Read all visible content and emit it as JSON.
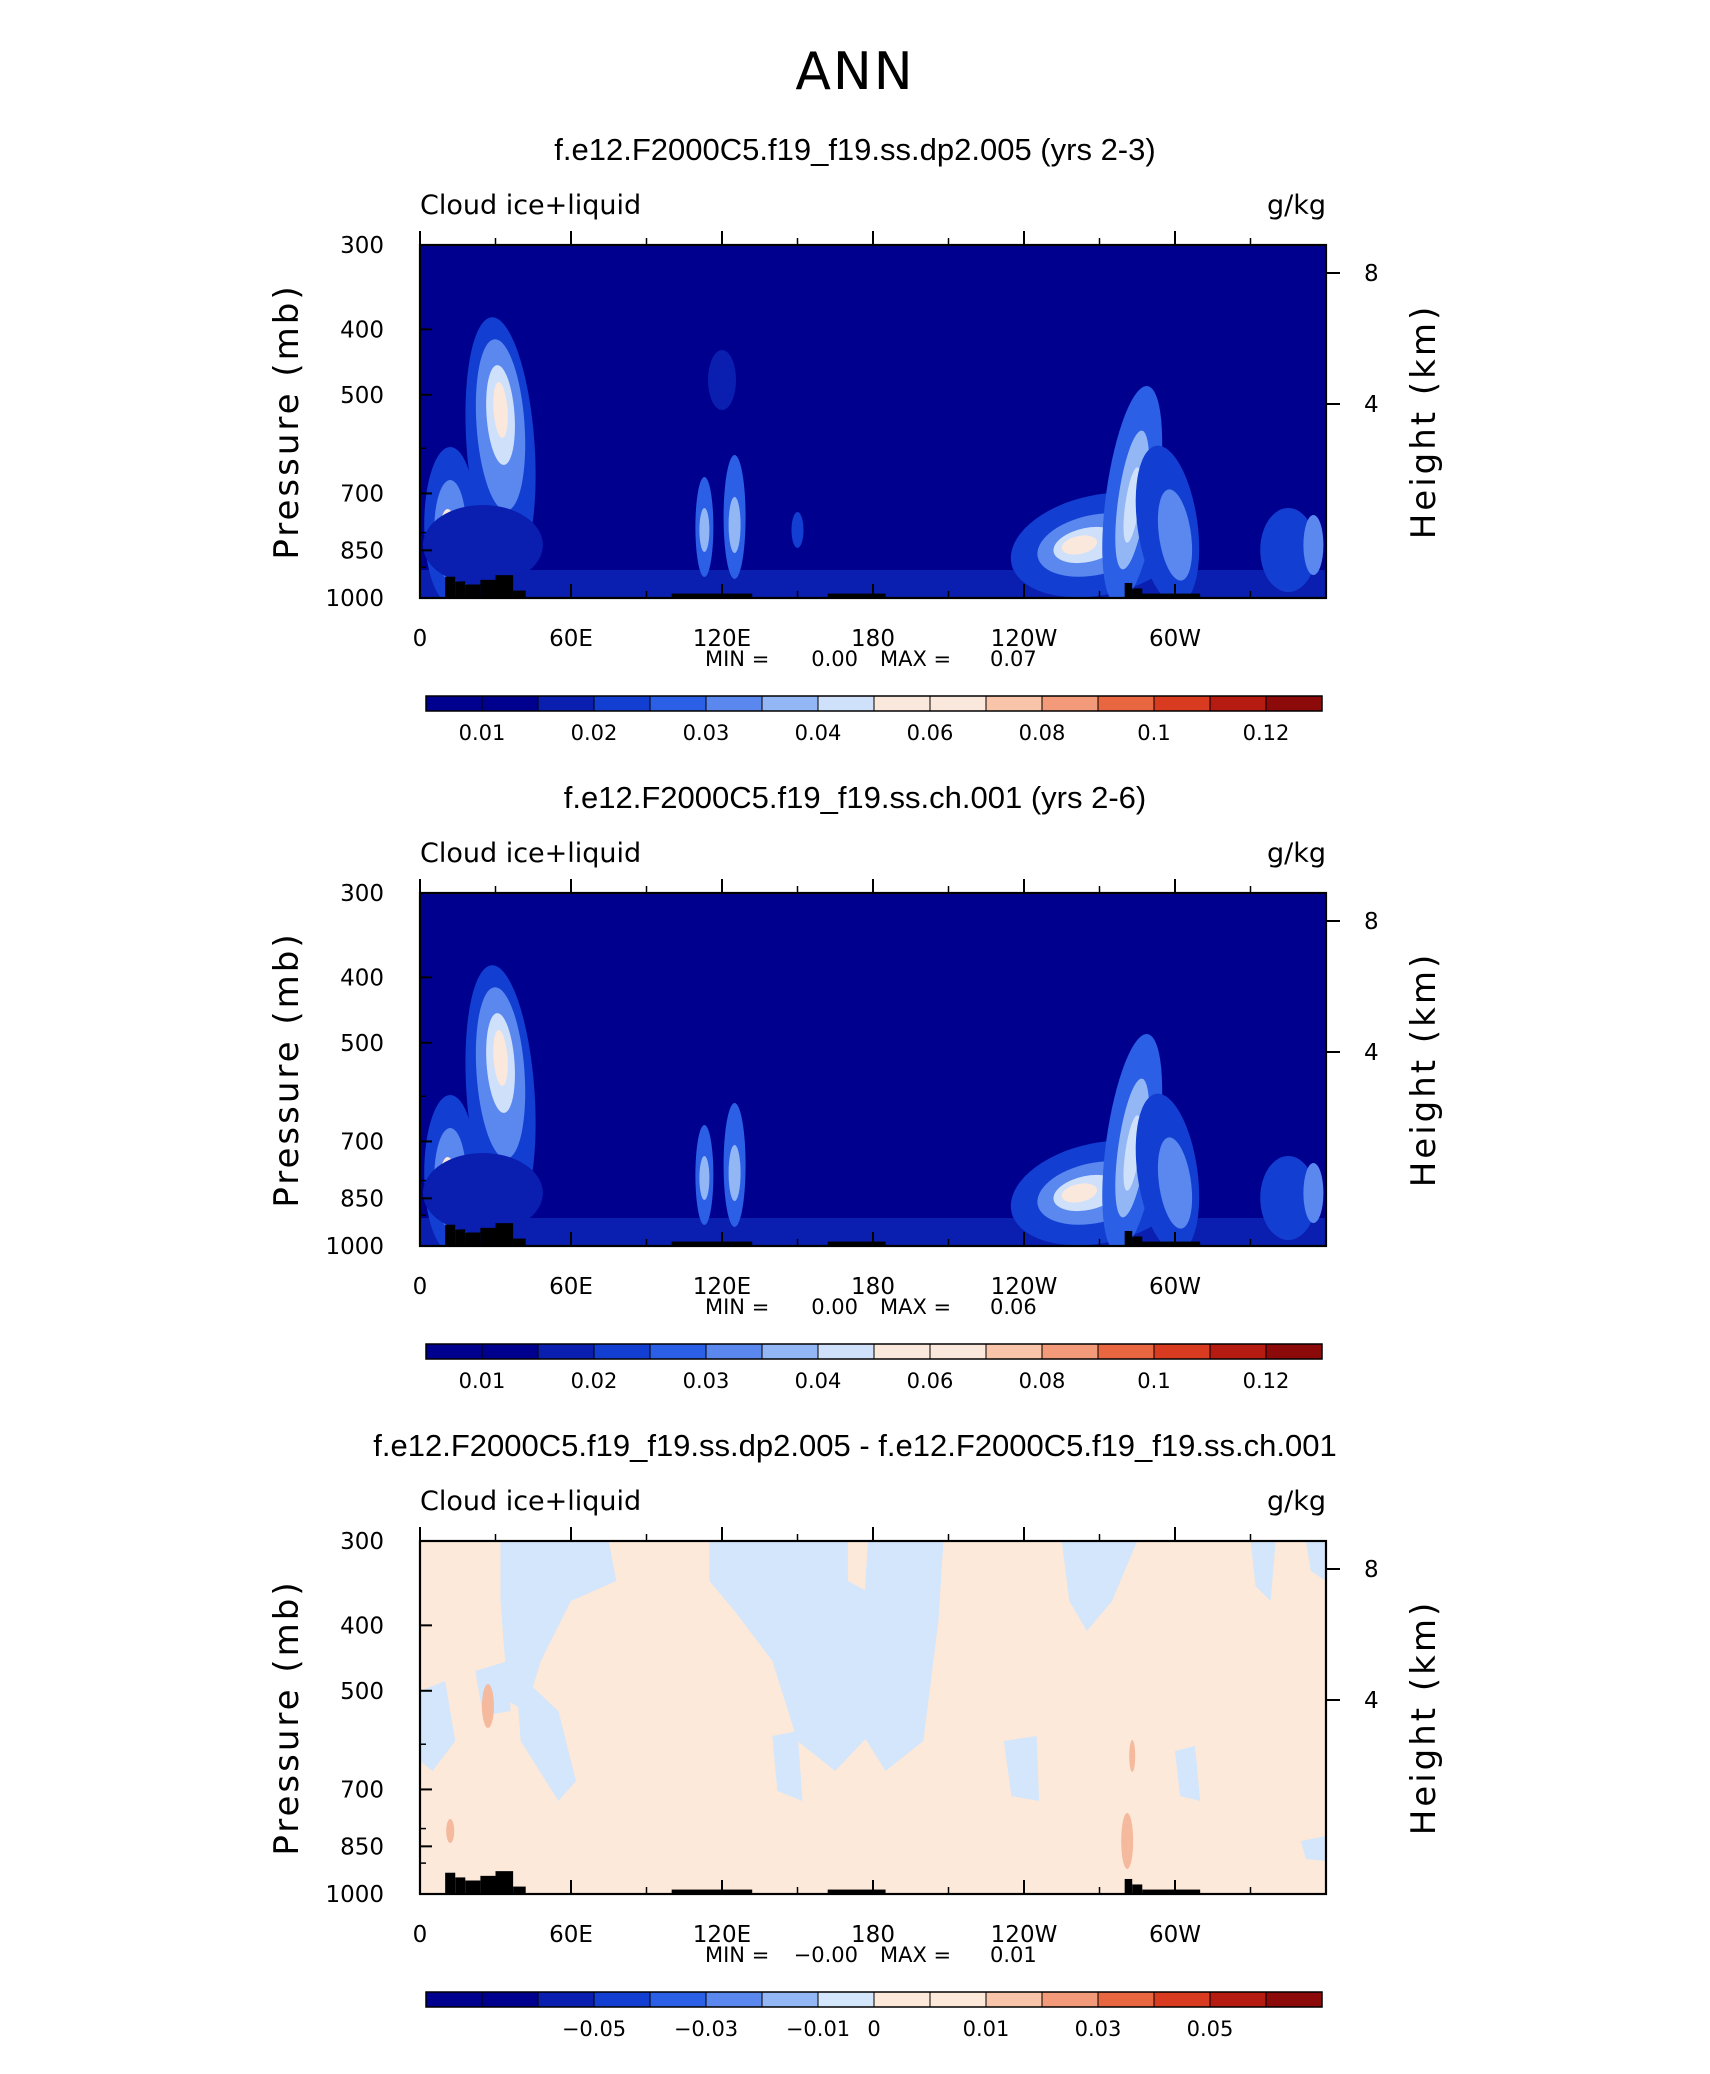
{
  "figure": {
    "title": "ANN"
  },
  "chart_data": [
    {
      "type": "heatmap",
      "title": "f.e12.F2000C5.f19_f19.ss.dp2.005 (yrs 2-3)",
      "variable_label": "Cloud ice+liquid",
      "units_label": "g/kg",
      "ylabel": "Pressure (mb)",
      "y2label": "Height (km)",
      "x_ticks": [
        "0",
        "60E",
        "120E",
        "180",
        "120W",
        "60W"
      ],
      "y_ticks": [
        "300",
        "400",
        "500",
        "700",
        "850",
        "1000"
      ],
      "y2_ticks": [
        "8",
        "4"
      ],
      "min_text": "MIN =",
      "min_value": "0.00",
      "max_text": "MAX =",
      "max_value": "0.07",
      "colorbar_labels": [
        "0.01",
        "0.02",
        "0.03",
        "0.04",
        "0.06",
        "0.08",
        "0.1",
        "0.12"
      ],
      "field_range": [
        0,
        0.07
      ],
      "colors": {
        "background": "#00008f",
        "scale": [
          "#00008f",
          "#0a1fb0",
          "#123fd2",
          "#2a5fe6",
          "#5a88ef",
          "#93b6f5",
          "#cfe0fb",
          "#fbe8dc",
          "#f8c4aa",
          "#f29a79",
          "#e86741",
          "#d83b1f",
          "#b61b12",
          "#8c0a0a"
        ]
      }
    },
    {
      "type": "heatmap",
      "title": "f.e12.F2000C5.f19_f19.ss.ch.001 (yrs 2-6)",
      "variable_label": "Cloud ice+liquid",
      "units_label": "g/kg",
      "ylabel": "Pressure (mb)",
      "y2label": "Height (km)",
      "x_ticks": [
        "0",
        "60E",
        "120E",
        "180",
        "120W",
        "60W"
      ],
      "y_ticks": [
        "300",
        "400",
        "500",
        "700",
        "850",
        "1000"
      ],
      "y2_ticks": [
        "8",
        "4"
      ],
      "min_text": "MIN =",
      "min_value": "0.00",
      "max_text": "MAX =",
      "max_value": "0.06",
      "colorbar_labels": [
        "0.01",
        "0.02",
        "0.03",
        "0.04",
        "0.06",
        "0.08",
        "0.1",
        "0.12"
      ],
      "field_range": [
        0,
        0.06
      ],
      "colors": {
        "background": "#00008f",
        "scale": [
          "#00008f",
          "#0a1fb0",
          "#123fd2",
          "#2a5fe6",
          "#5a88ef",
          "#93b6f5",
          "#cfe0fb",
          "#fbe8dc",
          "#f8c4aa",
          "#f29a79",
          "#e86741",
          "#d83b1f",
          "#b61b12",
          "#8c0a0a"
        ]
      }
    },
    {
      "type": "heatmap",
      "title": "f.e12.F2000C5.f19_f19.ss.dp2.005 - f.e12.F2000C5.f19_f19.ss.ch.001",
      "variable_label": "Cloud ice+liquid",
      "units_label": "g/kg",
      "ylabel": "Pressure (mb)",
      "y2label": "Height (km)",
      "x_ticks": [
        "0",
        "60E",
        "120E",
        "180",
        "120W",
        "60W"
      ],
      "y_ticks": [
        "300",
        "400",
        "500",
        "700",
        "850",
        "1000"
      ],
      "y2_ticks": [
        "8",
        "4"
      ],
      "min_text": "MIN =",
      "min_value": "−0.00",
      "max_text": "MAX =",
      "max_value": "0.01",
      "colorbar_labels": [
        "−0.05",
        "−0.03",
        "−0.01",
        "0",
        "0.01",
        "0.03",
        "0.05"
      ],
      "field_range": [
        -0.0,
        0.01
      ],
      "colors": {
        "background": "#fde9d9",
        "negative": "#d3e6fb",
        "positive_strong": "#f5b99e",
        "scale": [
          "#00008f",
          "#0a1fb0",
          "#123fd2",
          "#2a5fe6",
          "#5a88ef",
          "#93b6f5",
          "#d3e6fb",
          "#fde9d9",
          "#f8c4aa",
          "#f29a79",
          "#e86741",
          "#d83b1f",
          "#b61b12",
          "#8c0a0a"
        ]
      }
    }
  ]
}
